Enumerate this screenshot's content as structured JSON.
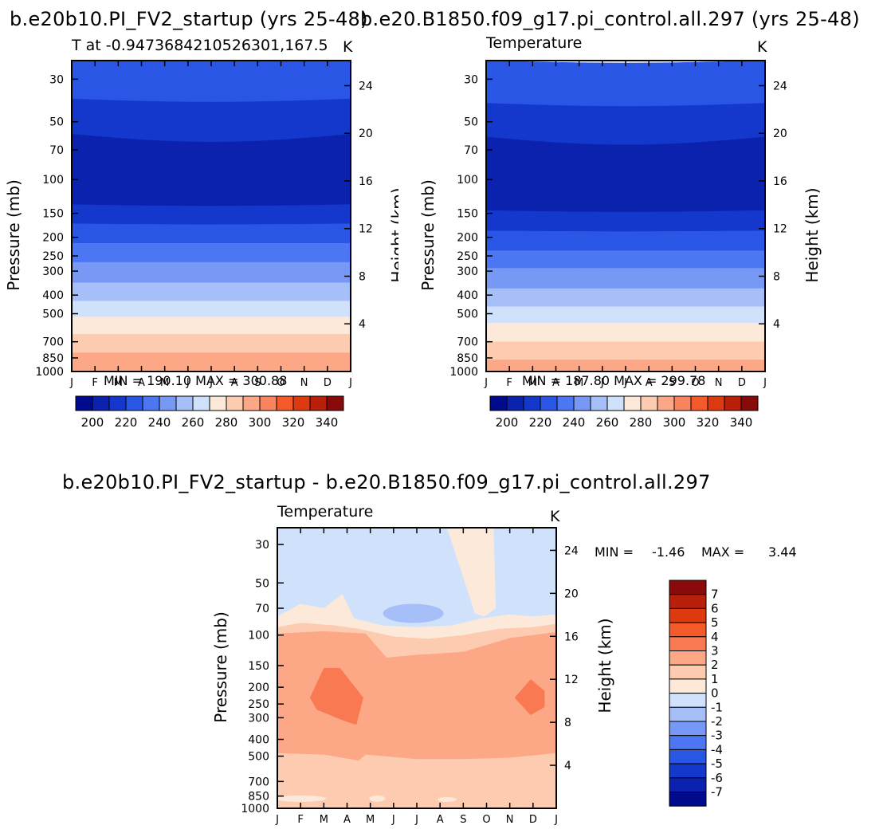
{
  "chart_data": [
    {
      "type": "contour",
      "title_top": "b.e20b10.PI_FV2_startup (yrs 25-48)",
      "subtitle_left": "T at -0.9473684210526301,167.5",
      "subtitle_right": "K",
      "ylabel_left": "Pressure (mb)",
      "ylabel_right": "Height (km)",
      "x_ticks": [
        "J",
        "F",
        "M",
        "A",
        "M",
        "J",
        "J",
        "A",
        "S",
        "O",
        "N",
        "D",
        "J"
      ],
      "y_pressure_ticks": [
        "30",
        "50",
        "70",
        "100",
        "150",
        "200",
        "250",
        "300",
        "400",
        "500",
        "700",
        "850",
        "1000"
      ],
      "y_height_ticks": [
        "24",
        "20",
        "16",
        "12",
        "8",
        "4"
      ],
      "min_max_text": "MIN = 190.10  MAX = 300.88",
      "min": 190.1,
      "max": 300.88,
      "colorbar_levels": [
        195,
        200,
        205,
        210,
        215,
        220,
        225,
        230,
        235,
        240,
        245,
        250,
        255,
        260,
        265,
        270,
        275,
        280,
        285,
        290,
        295,
        300
      ],
      "colorbar_labels": [
        "200",
        "220",
        "240",
        "260",
        "280",
        "300",
        "320",
        "340"
      ]
    },
    {
      "type": "contour",
      "title_top": "b.e20.B1850.f09_g17.pi_control.all.297 (yrs 25-48)",
      "subtitle_left": "Temperature",
      "subtitle_right": "K",
      "ylabel_left": "Pressure (mb)",
      "ylabel_right": "Height (km)",
      "x_ticks": [
        "J",
        "F",
        "M",
        "A",
        "M",
        "J",
        "J",
        "A",
        "S",
        "O",
        "N",
        "D",
        "J"
      ],
      "y_pressure_ticks": [
        "30",
        "50",
        "70",
        "100",
        "150",
        "200",
        "250",
        "300",
        "400",
        "500",
        "700",
        "850",
        "1000"
      ],
      "y_height_ticks": [
        "24",
        "20",
        "16",
        "12",
        "8",
        "4"
      ],
      "min_max_text": "MIN = 187.80  MAX = 299.78",
      "min": 187.8,
      "max": 299.78,
      "colorbar_labels": [
        "200",
        "220",
        "240",
        "260",
        "280",
        "300",
        "320",
        "340"
      ]
    },
    {
      "type": "contour",
      "title_top": "b.e20b10.PI_FV2_startup - b.e20.B1850.f09_g17.pi_control.all.297",
      "subtitle_left": "Temperature",
      "subtitle_right": "K",
      "ylabel_left": "Pressure (mb)",
      "ylabel_right": "Height (km)",
      "x_ticks": [
        "J",
        "F",
        "M",
        "A",
        "M",
        "J",
        "J",
        "A",
        "S",
        "O",
        "N",
        "D",
        "J"
      ],
      "y_pressure_ticks": [
        "30",
        "50",
        "70",
        "100",
        "150",
        "200",
        "250",
        "300",
        "400",
        "500",
        "700",
        "850",
        "1000"
      ],
      "y_height_ticks": [
        "24",
        "20",
        "16",
        "12",
        "8",
        "4"
      ],
      "min_label": "MIN =",
      "min_value": "-1.46",
      "max_label": "MAX =",
      "max_value": "3.44",
      "min": -1.46,
      "max": 3.44,
      "colorbar_labels": [
        "7",
        "6",
        "5",
        "4",
        "3",
        "2",
        "1",
        "0",
        "-1",
        "-2",
        "-3",
        "-4",
        "-5",
        "-6",
        "-7"
      ]
    }
  ],
  "colors": {
    "temp_scale": [
      "#000a8c",
      "#0a22ad",
      "#1438cc",
      "#2a56e6",
      "#4d77f2",
      "#7898f5",
      "#a6bff8",
      "#d0e2fb",
      "#fde9d9",
      "#fdcbb0",
      "#fca887",
      "#f9845e",
      "#f45a2a",
      "#de3a10",
      "#b8200a",
      "#8a0a0a"
    ],
    "diff_scale": [
      "#8a0a0a",
      "#b8200a",
      "#de3a10",
      "#f45a2a",
      "#f97a52",
      "#fca887",
      "#fdcbb0",
      "#fde9d9",
      "#d0e2fb",
      "#a6bff8",
      "#7898f5",
      "#4d77f2",
      "#2a56e6",
      "#1438cc",
      "#0a22ad",
      "#000a8c"
    ]
  }
}
